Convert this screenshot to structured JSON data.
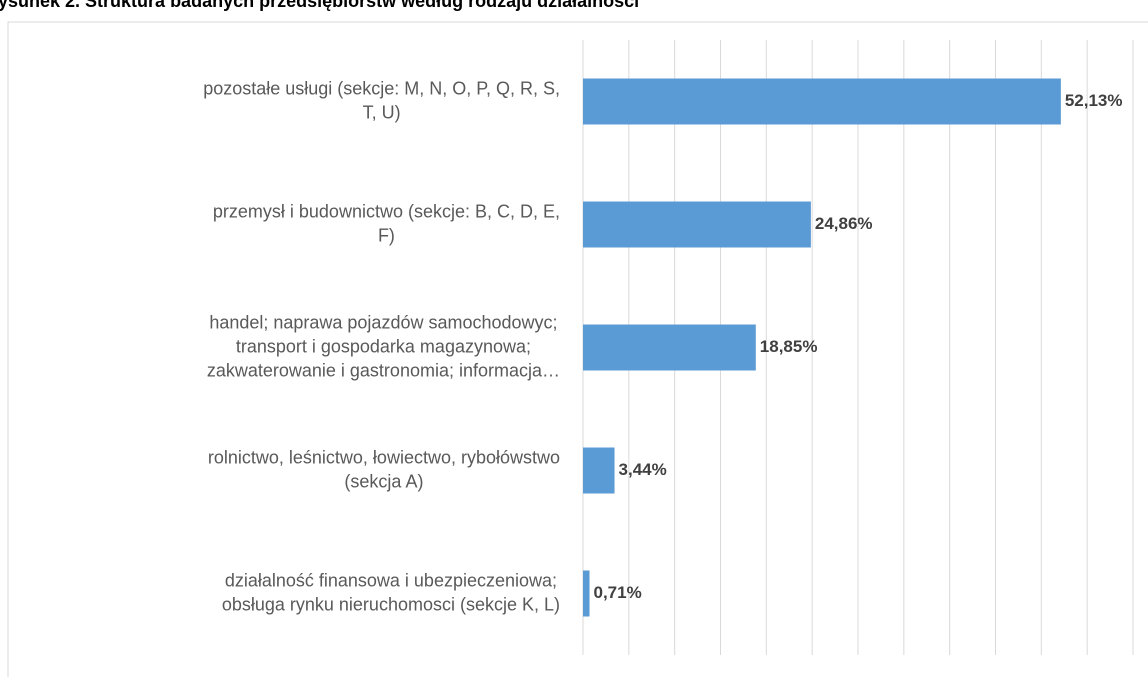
{
  "chart_data": {
    "type": "bar",
    "orientation": "horizontal",
    "title": "ysunek 2. Struktura badanych przedsiębiorstw według rodzaju działalności",
    "categories": [
      "pozostałe usługi (sekcje: M, N, O, P, Q, R, S,\nT, U)",
      "przemysł i budownictwo (sekcje: B, C, D, E,\nF)",
      "handel; naprawa pojazdów samochodowyc;\ntransport i gospodarka magazynowa;\nzakwaterowanie i gastronomia; informacja…",
      "rolnictwo, leśnictwo, łowiectwo, rybołówstwo\n(sekcja A)",
      "działalność finansowa i ubezpieczeniowa;\nobsługa rynku nieruchomosci (sekcje K, L)"
    ],
    "values": [
      52.13,
      24.86,
      18.85,
      3.44,
      0.71
    ],
    "value_labels": [
      "52,13%",
      "24,86%",
      "18,85%",
      "3,44%",
      "0,71%"
    ],
    "color": "#5b9bd5",
    "xlim": [
      0,
      60
    ],
    "xticks": [
      0,
      5,
      10,
      15,
      20,
      25,
      30,
      35,
      40,
      45,
      50,
      55,
      60
    ],
    "grid": true
  }
}
